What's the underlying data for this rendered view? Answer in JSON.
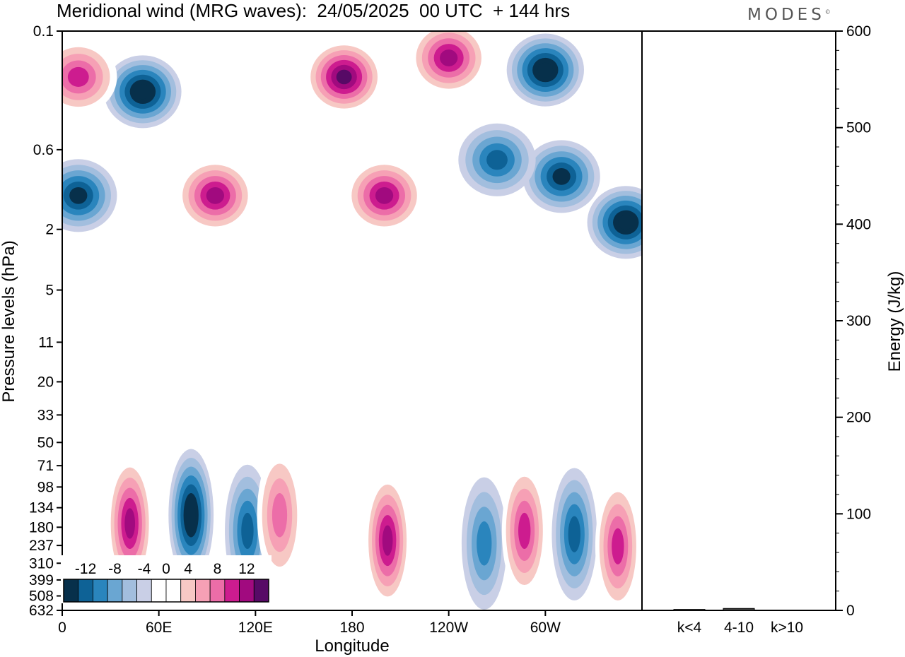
{
  "header": {
    "title": "Meridional wind (MRG waves):  24/05/2025  00 UTC  + 144 hrs",
    "logo_text": "MODES",
    "logo_mark": "©"
  },
  "chart_data": [
    {
      "type": "heatmap",
      "title": "Meridional wind (MRG waves):  24/05/2025  00 UTC  + 144 hrs",
      "xlabel": "Longitude",
      "ylabel": "Pressure levels (hPa)",
      "x_ticks": [
        "0",
        "60E",
        "120E",
        "180",
        "120W",
        "60W"
      ],
      "y_ticks": [
        "0.1",
        "0.6",
        "2",
        "5",
        "11",
        "20",
        "33",
        "50",
        "71",
        "98",
        "134",
        "180",
        "237",
        "310",
        "399",
        "508",
        "632"
      ],
      "y_scale": "log (top 0.1 hPa, bottom 632 hPa)",
      "colorbar": {
        "labels": [
          "-12",
          "-8",
          "-4",
          "0",
          "4",
          "8",
          "12"
        ],
        "levels": [
          -14,
          -12,
          -10,
          -8,
          -6,
          -4,
          -2,
          2,
          4,
          6,
          8,
          10,
          12,
          14
        ],
        "colors": [
          "#07304b",
          "#0e6296",
          "#2a85bd",
          "#6aa6d2",
          "#a2bede",
          "#c9cfe6",
          "#ffffff",
          "#ffffff",
          "#f7c8c4",
          "#f6a0b5",
          "#ec6da8",
          "#cd1c8f",
          "#a10a7f",
          "#570a66"
        ],
        "placement": "bottom-left"
      },
      "features": [
        {
          "lon": 42,
          "plev": 170,
          "value": 12
        },
        {
          "lon": 80,
          "plev": 150,
          "value": -14
        },
        {
          "lon": 115,
          "plev": 190,
          "value": -10
        },
        {
          "lon": 135,
          "plev": 150,
          "value": 8
        },
        {
          "lon": 202,
          "plev": 220,
          "value": 12
        },
        {
          "lon": 262,
          "plev": 230,
          "value": -8
        },
        {
          "lon": 287,
          "plev": 190,
          "value": 10
        },
        {
          "lon": 318,
          "plev": 200,
          "value": -10
        },
        {
          "lon": 345,
          "plev": 240,
          "value": 10
        },
        {
          "lon": 50,
          "plev": 0.25,
          "value": -14
        },
        {
          "lon": 175,
          "plev": 0.2,
          "value": 14
        },
        {
          "lon": 300,
          "plev": 0.18,
          "value": -14
        },
        {
          "lon": 240,
          "plev": 0.15,
          "value": 12
        },
        {
          "lon": 10,
          "plev": 0.2,
          "value": 10
        },
        {
          "lon": 310,
          "plev": 0.9,
          "value": -12
        },
        {
          "lon": 350,
          "plev": 1.8,
          "value": -14
        },
        {
          "lon": 95,
          "plev": 1.2,
          "value": 12
        },
        {
          "lon": 200,
          "plev": 1.2,
          "value": 12
        },
        {
          "lon": 10,
          "plev": 1.2,
          "value": -12
        },
        {
          "lon": 270,
          "plev": 0.7,
          "value": -10
        }
      ]
    },
    {
      "type": "bar",
      "ylabel": "Energy (J/kg)",
      "categories": [
        "k<4",
        "4-10",
        "k>10"
      ],
      "values": [
        1,
        2,
        0
      ],
      "ylim": [
        0,
        600
      ],
      "y_ticks": [
        "0",
        "100",
        "200",
        "300",
        "400",
        "500",
        "600"
      ]
    }
  ]
}
